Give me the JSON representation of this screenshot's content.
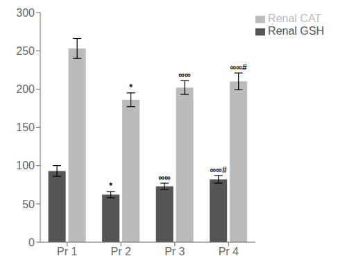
{
  "chart_data": {
    "type": "bar",
    "categories": [
      "Pr 1",
      "Pr 2",
      "Pr 3",
      "Pr 4"
    ],
    "series": [
      {
        "name": "Renal GSH",
        "color": "#555555",
        "values": [
          93,
          62,
          73,
          82
        ],
        "errors": [
          7,
          4,
          4,
          5
        ],
        "annotations": [
          null,
          "*",
          "∞∞",
          "∞∞#"
        ]
      },
      {
        "name": "Renal CAT",
        "color": "#bbbbbb",
        "values": [
          253,
          186,
          202,
          210
        ],
        "errors": [
          13,
          9,
          9,
          11
        ],
        "annotations": [
          null,
          "*",
          "∞∞",
          "∞∞#"
        ]
      }
    ],
    "ylim": [
      0,
      300
    ],
    "yticks": [
      0,
      50,
      100,
      150,
      200,
      250,
      300
    ],
    "legend": "upper right",
    "grid": false
  }
}
